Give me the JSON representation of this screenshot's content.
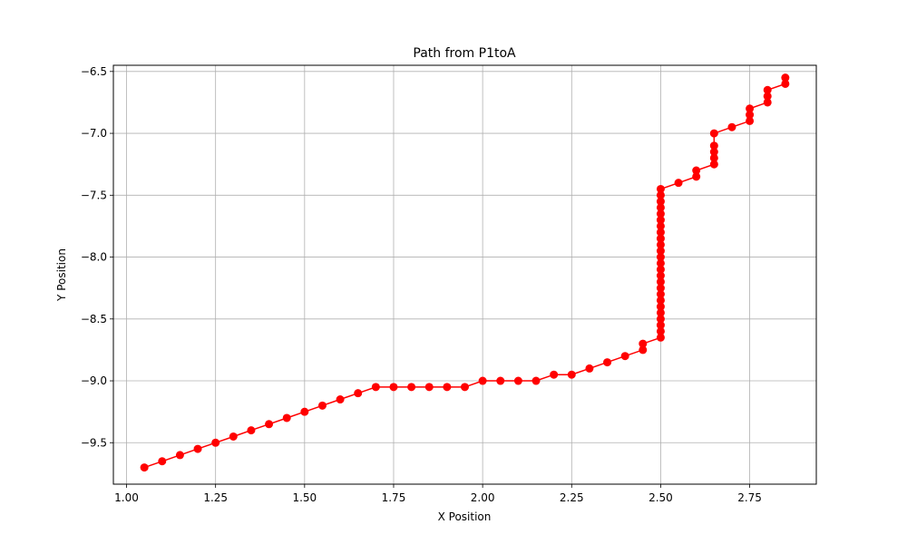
{
  "chart_data": {
    "type": "line",
    "title": "Path from P1toA",
    "xlabel": "X Position",
    "ylabel": "Y Position",
    "xlim": [
      0.963,
      2.937
    ],
    "ylim": [
      -9.835,
      -6.45
    ],
    "xticks": [
      1.0,
      1.25,
      1.5,
      1.75,
      2.0,
      2.25,
      2.5,
      2.75
    ],
    "xtick_labels": [
      "1.00",
      "1.25",
      "1.50",
      "1.75",
      "2.00",
      "2.25",
      "2.50",
      "2.75"
    ],
    "yticks": [
      -9.5,
      -9.0,
      -8.5,
      -8.0,
      -7.5,
      -7.0,
      -6.5
    ],
    "ytick_labels": [
      "−9.5",
      "−9.0",
      "−8.5",
      "−8.0",
      "−7.5",
      "−7.0",
      "−6.5"
    ],
    "grid": true,
    "series": [
      {
        "color": "#ff0000",
        "marker": "circle",
        "x": [
          1.05,
          1.1,
          1.15,
          1.2,
          1.25,
          1.3,
          1.35,
          1.4,
          1.45,
          1.5,
          1.55,
          1.6,
          1.65,
          1.7,
          1.75,
          1.8,
          1.85,
          1.9,
          1.95,
          2.0,
          2.05,
          2.1,
          2.15,
          2.2,
          2.25,
          2.3,
          2.35,
          2.4,
          2.45,
          2.45,
          2.5,
          2.5,
          2.5,
          2.5,
          2.5,
          2.5,
          2.5,
          2.5,
          2.5,
          2.5,
          2.5,
          2.5,
          2.5,
          2.5,
          2.5,
          2.5,
          2.5,
          2.5,
          2.5,
          2.5,
          2.5,
          2.5,
          2.5,
          2.5,
          2.5,
          2.55,
          2.6,
          2.6,
          2.65,
          2.65,
          2.65,
          2.65,
          2.65,
          2.7,
          2.75,
          2.75,
          2.75,
          2.8,
          2.8,
          2.8,
          2.85,
          2.85
        ],
        "y": [
          -9.7,
          -9.65,
          -9.6,
          -9.55,
          -9.5,
          -9.45,
          -9.4,
          -9.35,
          -9.3,
          -9.25,
          -9.2,
          -9.15,
          -9.1,
          -9.05,
          -9.05,
          -9.05,
          -9.05,
          -9.05,
          -9.05,
          -9.0,
          -9.0,
          -9.0,
          -9.0,
          -8.95,
          -8.95,
          -8.9,
          -8.85,
          -8.8,
          -8.75,
          -8.7,
          -8.65,
          -8.6,
          -8.55,
          -8.5,
          -8.45,
          -8.4,
          -8.35,
          -8.3,
          -8.25,
          -8.2,
          -8.15,
          -8.1,
          -8.05,
          -8.0,
          -7.95,
          -7.9,
          -7.85,
          -7.8,
          -7.75,
          -7.7,
          -7.65,
          -7.6,
          -7.55,
          -7.5,
          -7.45,
          -7.4,
          -7.35,
          -7.3,
          -7.25,
          -7.2,
          -7.15,
          -7.1,
          -7.0,
          -6.95,
          -6.9,
          -6.85,
          -6.8,
          -6.75,
          -6.7,
          -6.65,
          -6.6,
          -6.55
        ]
      }
    ]
  }
}
